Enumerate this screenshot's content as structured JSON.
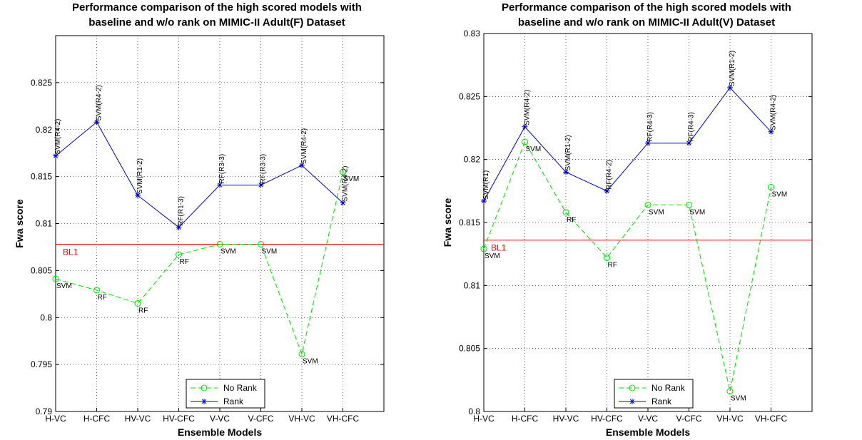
{
  "chart_data": [
    {
      "type": "line",
      "title": [
        "Performance comparison of the high scored models with",
        "baseline and w/o rank on MIMIC-II Adult(F) Dataset"
      ],
      "xlabel": "Ensemble Models",
      "ylabel": "Fwa score",
      "categories": [
        "H-VC",
        "H-CFC",
        "HV-VC",
        "HV-CFC",
        "V-VC",
        "V-CFC",
        "VH-VC",
        "VH-CFC"
      ],
      "ylim": [
        0.79,
        0.83
      ],
      "yticks": [
        "0.79",
        "0.795",
        "0.8",
        "0.805",
        "0.81",
        "0.815",
        "0.82",
        "0.825"
      ],
      "grid": true,
      "legend_position": "bottom-center",
      "baseline": {
        "name": "BL1",
        "value": 0.8078,
        "color": "#ff0000"
      },
      "series": [
        {
          "name": "No Rank",
          "color": "#00e000",
          "style": "dashed",
          "marker": "circle",
          "values": [
            0.8041,
            0.8029,
            0.8015,
            0.8067,
            0.8078,
            0.8078,
            0.7961,
            0.8155
          ],
          "labels": [
            "SVM",
            "RF",
            "RF",
            "RF",
            "SVM",
            "SVM",
            "SVM",
            "SVM"
          ]
        },
        {
          "name": "Rank",
          "color": "#0000cc",
          "style": "solid",
          "marker": "star",
          "values": [
            0.8172,
            0.8208,
            0.813,
            0.8096,
            0.8141,
            0.8141,
            0.8162,
            0.8122
          ],
          "labels": [
            "SVM(R4-2)",
            "SVM(R4-2)",
            "SVM(R1-2)",
            "RF(R1-3)",
            "RF(R3-3)",
            "RF(R3-3)",
            "SVM(R4-2)",
            "SVM(R4-2)"
          ]
        }
      ]
    },
    {
      "type": "line",
      "title": [
        "Performance comparison of the high scored models with",
        "baseline and w/o rank on MIMIC-II Adult(V) Dataset"
      ],
      "xlabel": "Ensemble Models",
      "ylabel": "Fwa score",
      "categories": [
        "H-VC",
        "H-CFC",
        "HV-VC",
        "HV-CFC",
        "V-VC",
        "V-CFC",
        "VH-VC",
        "VH-CFC"
      ],
      "ylim": [
        0.8,
        0.83
      ],
      "yticks": [
        "0.8",
        "0.805",
        "0.81",
        "0.815",
        "0.82",
        "0.825",
        "0.83"
      ],
      "grid": true,
      "legend_position": "bottom-center",
      "baseline": {
        "name": "BL1",
        "value": 0.8136,
        "color": "#ff0000"
      },
      "series": [
        {
          "name": "No Rank",
          "color": "#00e000",
          "style": "dashed",
          "marker": "circle",
          "values": [
            0.8129,
            0.8214,
            0.8158,
            0.8122,
            0.8164,
            0.8164,
            0.8016,
            0.8178
          ],
          "labels": [
            "SVM",
            "SVM",
            "RF",
            "RF",
            "SVM",
            "SVM",
            "SVM",
            "SVM"
          ]
        },
        {
          "name": "Rank",
          "color": "#0000cc",
          "style": "solid",
          "marker": "star",
          "values": [
            0.8167,
            0.8226,
            0.819,
            0.8175,
            0.8213,
            0.8213,
            0.8257,
            0.8222
          ],
          "labels": [
            "SVM(R1)",
            "SVM(R4-2)",
            "SVM(R1-2)",
            "RF(R4-2)",
            "RF(R4-3)",
            "RF(R4-3)",
            "SVM(R1-2)",
            "SVM(R4-2)"
          ]
        }
      ]
    }
  ]
}
